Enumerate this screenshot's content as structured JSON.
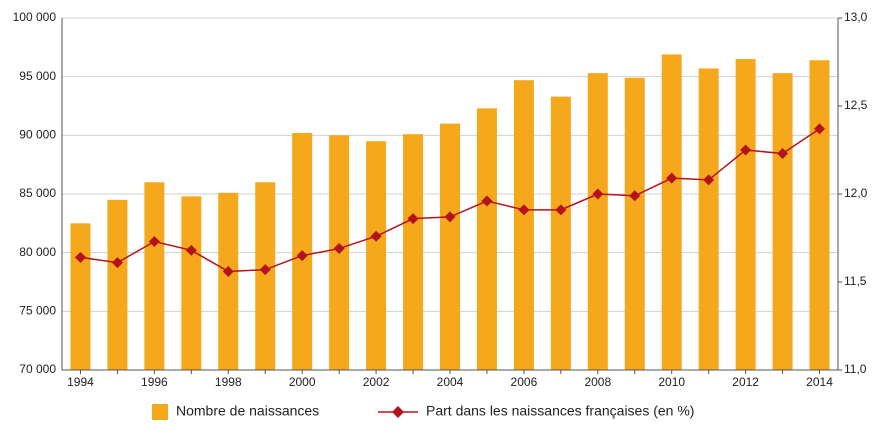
{
  "chart_data": {
    "type": "bar-line",
    "categories": [
      "1994",
      null,
      "1996",
      null,
      "1998",
      null,
      "2000",
      null,
      "2002",
      null,
      "2004",
      null,
      "2006",
      null,
      "2008",
      null,
      "2010",
      null,
      "2012",
      null,
      "2014"
    ],
    "series": [
      {
        "name": "Nombre de naissances",
        "type": "bar",
        "color": "#f5a81c",
        "axis": "y",
        "values": [
          82500,
          84500,
          86000,
          84800,
          85100,
          86000,
          90200,
          90000,
          89500,
          90100,
          91000,
          92300,
          94700,
          93300,
          95300,
          94900,
          96900,
          95700,
          96500,
          95300,
          96400
        ]
      },
      {
        "name": "Part dans les naissances françaises (en %)",
        "type": "line",
        "color": "#b5121b",
        "axis": "y2",
        "values": [
          11.64,
          11.61,
          11.73,
          11.68,
          11.56,
          11.57,
          11.65,
          11.69,
          11.76,
          11.86,
          11.87,
          11.96,
          11.91,
          11.91,
          12.0,
          11.99,
          12.09,
          12.08,
          12.25,
          12.23,
          12.37
        ]
      }
    ],
    "ylim": [
      70000,
      100000
    ],
    "yticks": [
      {
        "value": 70000,
        "label": "70 000"
      },
      {
        "value": 75000,
        "label": "75 000"
      },
      {
        "value": 80000,
        "label": "80 000"
      },
      {
        "value": 85000,
        "label": "85 000"
      },
      {
        "value": 90000,
        "label": "90 000"
      },
      {
        "value": 95000,
        "label": "95 000"
      },
      {
        "value": 100000,
        "label": "100 000"
      }
    ],
    "y2lim": [
      11.0,
      13.0
    ],
    "y2ticks": [
      {
        "value": 11.0,
        "label": "11,0"
      },
      {
        "value": 11.5,
        "label": "11,5"
      },
      {
        "value": 12.0,
        "label": "12,0"
      },
      {
        "value": 12.5,
        "label": "12,5"
      },
      {
        "value": 13.0,
        "label": "13,0"
      }
    ],
    "grid": true,
    "legend": "bottom"
  }
}
